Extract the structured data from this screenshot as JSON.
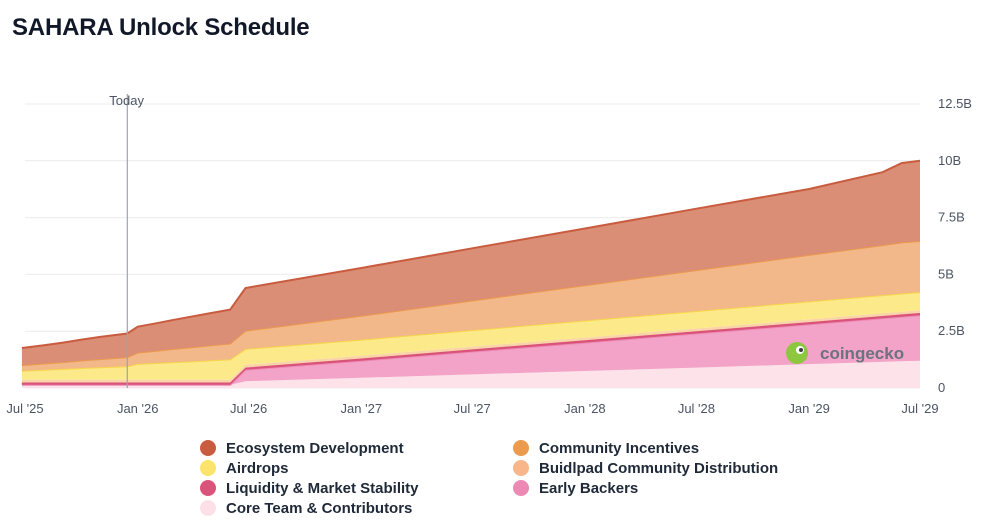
{
  "title": "SAHARA Unlock Schedule",
  "watermark": "coingecko",
  "chart_data": {
    "type": "area",
    "stacked": true,
    "title": "SAHARA Unlock Schedule",
    "x_unit": "date",
    "y_unit": "tokens",
    "ylim": [
      0,
      12500000000
    ],
    "y_ticks": [
      0,
      2500000000,
      5000000000,
      7500000000,
      10000000000,
      12500000000
    ],
    "y_tick_labels": [
      "0",
      "2.5B",
      "5B",
      "7.5B",
      "10B",
      "12.5B"
    ],
    "x_ticks": [
      "2025-07-01",
      "2026-01-01",
      "2026-07-01",
      "2027-01-01",
      "2027-07-01",
      "2028-01-01",
      "2028-07-01",
      "2029-01-01",
      "2029-07-01"
    ],
    "x_tick_labels": [
      "Jul '25",
      "Jan '26",
      "Jul '26",
      "Jan '27",
      "Jul '27",
      "Jan '28",
      "Jul '28",
      "Jan '29",
      "Jul '29"
    ],
    "x_range": [
      "2025-07-01",
      "2029-07-01"
    ],
    "grid": "horizontal",
    "legend_position": "bottom",
    "annotation": {
      "label": "Today",
      "x": "2025-12-15"
    },
    "x": [
      "2025-06-26",
      "2025-08-01",
      "2025-09-01",
      "2025-10-01",
      "2025-11-01",
      "2025-12-15",
      "2026-01-01",
      "2026-02-01",
      "2026-03-01",
      "2026-04-01",
      "2026-05-01",
      "2026-06-01",
      "2026-06-26",
      "2027-01-01",
      "2027-07-01",
      "2028-01-01",
      "2028-07-01",
      "2029-01-01",
      "2029-05-01",
      "2029-06-01",
      "2029-07-01"
    ],
    "series": [
      {
        "name": "Core Team & Contributors",
        "color": "#fde2e9",
        "values": [
          0.14,
          0.14,
          0.14,
          0.14,
          0.14,
          0.14,
          0.14,
          0.14,
          0.14,
          0.14,
          0.14,
          0.14,
          0.3,
          0.45,
          0.6,
          0.75,
          0.9,
          1.05,
          1.15,
          1.18,
          1.2
        ]
      },
      {
        "name": "Early Backers",
        "color": "#f3a3c7",
        "values": [
          0,
          0,
          0,
          0,
          0,
          0,
          0,
          0,
          0,
          0,
          0,
          0,
          0.5,
          0.75,
          1.0,
          1.25,
          1.5,
          1.75,
          1.92,
          1.96,
          2.0
        ]
      },
      {
        "name": "Liquidity & Market Stability",
        "color": "#d9537a",
        "values": [
          0.1,
          0.1,
          0.1,
          0.1,
          0.1,
          0.1,
          0.1,
          0.1,
          0.1,
          0.1,
          0.1,
          0.1,
          0.1,
          0.1,
          0.1,
          0.1,
          0.1,
          0.1,
          0.1,
          0.1,
          0.1
        ]
      },
      {
        "name": "Buidlpad Community Distribution",
        "color": "#fbd3a8",
        "values": [
          0.12,
          0.12,
          0.12,
          0.12,
          0.12,
          0.12,
          0.12,
          0.12,
          0.12,
          0.12,
          0.12,
          0.12,
          0.12,
          0.12,
          0.12,
          0.12,
          0.12,
          0.12,
          0.12,
          0.12,
          0.12
        ]
      },
      {
        "name": "Airdrops",
        "color": "#fce98a",
        "values": [
          0.4,
          0.44,
          0.48,
          0.52,
          0.55,
          0.6,
          0.7,
          0.74,
          0.78,
          0.82,
          0.86,
          0.9,
          0.7,
          0.71,
          0.73,
          0.75,
          0.77,
          0.79,
          0.8,
          0.8,
          0.8
        ]
      },
      {
        "name": "Community Incentives",
        "color": "#f2b88a",
        "values": [
          0.25,
          0.28,
          0.3,
          0.33,
          0.36,
          0.4,
          0.5,
          0.54,
          0.58,
          0.62,
          0.66,
          0.7,
          0.8,
          1.05,
          1.3,
          1.55,
          1.8,
          2.05,
          2.2,
          2.25,
          2.25
        ]
      },
      {
        "name": "Ecosystem Development",
        "color": "#d98e75",
        "values": [
          0.75,
          0.8,
          0.86,
          0.92,
          0.98,
          1.04,
          1.14,
          1.21,
          1.28,
          1.35,
          1.42,
          1.49,
          1.88,
          2.1,
          2.3,
          2.5,
          2.7,
          2.9,
          3.21,
          3.49,
          3.53
        ]
      }
    ]
  },
  "legend": [
    {
      "label": "Ecosystem Development",
      "color": "#c95c3f"
    },
    {
      "label": "Community Incentives",
      "color": "#ec9a4e"
    },
    {
      "label": "Airdrops",
      "color": "#fbe36c"
    },
    {
      "label": "Buidlpad Community Distribution",
      "color": "#f8b78a"
    },
    {
      "label": "Liquidity & Market Stability",
      "color": "#d9537a"
    },
    {
      "label": "Early Backers",
      "color": "#ec8ab5"
    },
    {
      "label": "Core Team & Contributors",
      "color": "#fde0e7"
    }
  ]
}
